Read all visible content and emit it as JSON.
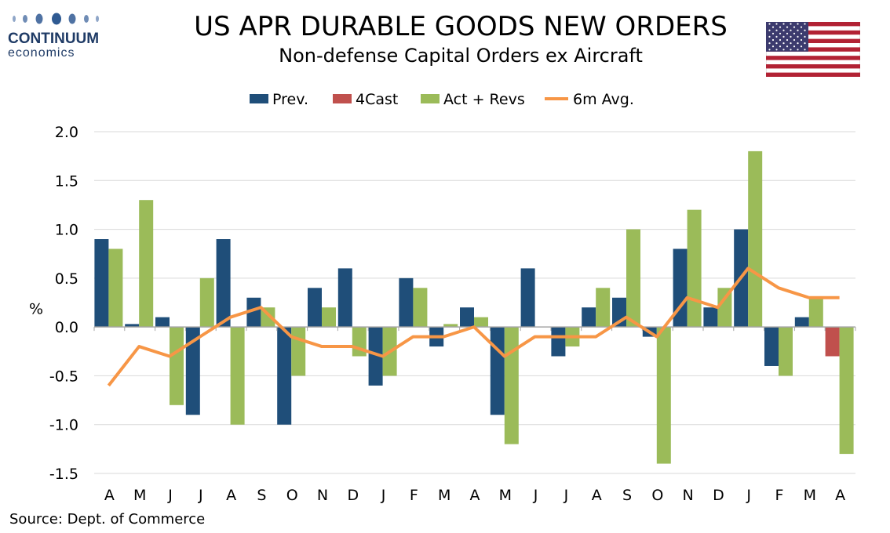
{
  "header": {
    "title": "US APR DURABLE GOODS NEW ORDERS",
    "subtitle": "Non-defense Capital Orders ex Aircraft"
  },
  "logo": {
    "name": "CONTINUUM",
    "sub": "economics",
    "color": "#1f3b66"
  },
  "source": "Source: Dept. of Commerce",
  "chart_data": {
    "type": "bar",
    "categories": [
      "A",
      "M",
      "J",
      "J",
      "A",
      "S",
      "O",
      "N",
      "D",
      "J",
      "F",
      "M",
      "A",
      "M",
      "J",
      "J",
      "A",
      "S",
      "O",
      "N",
      "D",
      "J",
      "F",
      "M",
      "A"
    ],
    "ylabel": "%",
    "ylim": [
      -1.5,
      2.0
    ],
    "yticks": [
      "2.0",
      "1.5",
      "1.0",
      "0.5",
      "0.0",
      "-0.5",
      "-1.0",
      "-1.5"
    ],
    "ytick_values": [
      2.0,
      1.5,
      1.0,
      0.5,
      0.0,
      -0.5,
      -1.0,
      -1.5
    ],
    "grid": true,
    "legend": "top-center",
    "series": [
      {
        "name": "Prev.",
        "kind": "bar",
        "color": "#1f4e79",
        "values": [
          0.9,
          0.03,
          0.1,
          -0.9,
          0.9,
          0.3,
          -1.0,
          0.4,
          0.6,
          -0.6,
          0.5,
          -0.2,
          0.2,
          -0.9,
          0.6,
          -0.3,
          0.2,
          0.3,
          -0.1,
          0.8,
          0.2,
          1.0,
          -0.4,
          0.1,
          null
        ]
      },
      {
        "name": "4Cast",
        "kind": "bar",
        "color": "#c0504d",
        "values": [
          null,
          null,
          null,
          null,
          null,
          null,
          null,
          null,
          null,
          null,
          null,
          null,
          null,
          null,
          null,
          null,
          null,
          null,
          null,
          null,
          null,
          null,
          null,
          null,
          -0.3
        ]
      },
      {
        "name": "Act + Revs",
        "kind": "bar",
        "color": "#9bbb59",
        "values": [
          0.8,
          1.3,
          -0.8,
          0.5,
          -1.0,
          0.2,
          -0.5,
          0.2,
          -0.3,
          -0.5,
          0.4,
          0.03,
          0.1,
          -1.2,
          null,
          -0.2,
          0.4,
          1.0,
          -1.4,
          1.2,
          0.4,
          1.8,
          -0.5,
          0.3,
          -1.3
        ]
      },
      {
        "name": "6m Avg.",
        "kind": "line",
        "color": "#f79646",
        "values": [
          -0.6,
          -0.2,
          -0.3,
          -0.1,
          0.1,
          0.2,
          -0.1,
          -0.2,
          -0.2,
          -0.3,
          -0.1,
          -0.1,
          0.0,
          -0.3,
          -0.1,
          -0.1,
          -0.1,
          0.1,
          -0.1,
          0.3,
          0.2,
          0.6,
          0.4,
          0.3,
          0.3
        ]
      }
    ]
  }
}
